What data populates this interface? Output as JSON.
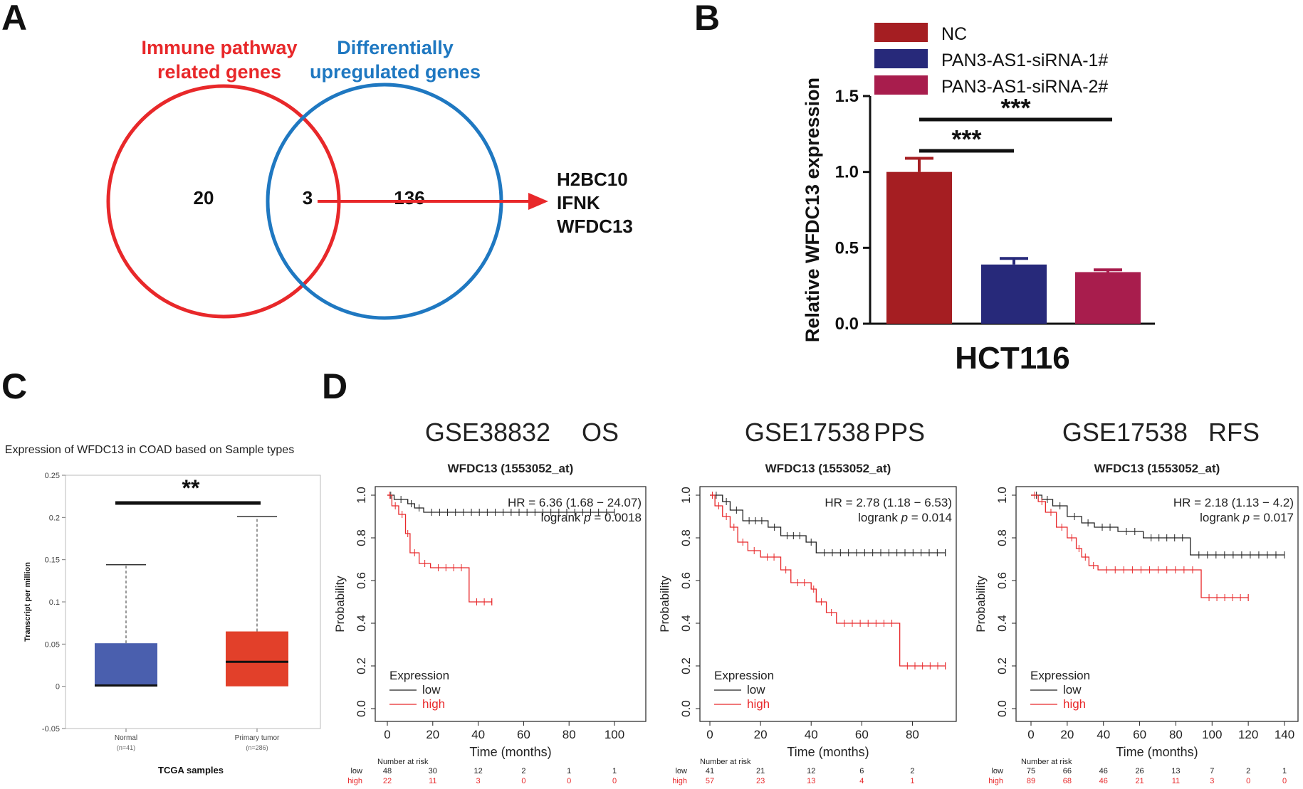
{
  "panels": {
    "a": "A",
    "b": "B",
    "c": "C",
    "d": "D"
  },
  "venn": {
    "left_title_1": "Immune pathway",
    "left_title_2": "related genes",
    "right_title_1": "Differentially",
    "right_title_2": "upregulated genes",
    "left_only": "20",
    "overlap": "3",
    "right_only": "136",
    "genes": [
      "H2BC10",
      "IFNK",
      "WFDC13"
    ],
    "colors": {
      "left": "#e8282a",
      "right": "#1f78c1",
      "arrow": "#e8282a"
    }
  },
  "chart_data": [
    {
      "type": "bar",
      "panel": "B",
      "categories": [
        "NC",
        "PAN3-AS1-siRNA-1#",
        "PAN3-AS1-siRNA-2#"
      ],
      "values": [
        1.0,
        0.39,
        0.34
      ],
      "errors": [
        0.09,
        0.04,
        0.015
      ],
      "colors": [
        "#a51e22",
        "#27297a",
        "#a81d4d"
      ],
      "ylabel": "Relative WFDC13 expression",
      "xlabel": "HCT116",
      "ylim": [
        0,
        1.5
      ],
      "yticks": [
        "0.0",
        "0.5",
        "1.0",
        "1.5"
      ],
      "legend": [
        "NC",
        "PAN3-AS1-siRNA-1#",
        "PAN3-AS1-siRNA-2#"
      ],
      "legend_position": "top",
      "significance": [
        {
          "from": "NC",
          "to": "PAN3-AS1-siRNA-1#",
          "label": "***"
        },
        {
          "from": "NC",
          "to": "PAN3-AS1-siRNA-2#",
          "label": "***"
        }
      ]
    },
    {
      "type": "box",
      "panel": "C",
      "title": "Expression of WFDC13 in COAD based on Sample types",
      "ylabel": "Transcript per million",
      "xlabel": "TCGA samples",
      "ylim": [
        -0.05,
        0.25
      ],
      "yticks": [
        "-0.05",
        "0",
        "0.05",
        "0.1",
        "0.15",
        "0.2",
        "0.25"
      ],
      "groups": [
        {
          "name": "Normal",
          "n_label": "(n=41)",
          "min": 0,
          "q1": 0,
          "median": 0.001,
          "q3": 0.051,
          "max": 0.144,
          "color": "#4a5fae"
        },
        {
          "name": "Primary tumor",
          "n_label": "(n=286)",
          "min": 0,
          "q1": 0,
          "median": 0.029,
          "q3": 0.065,
          "max": 0.201,
          "color": "#e2402a"
        }
      ],
      "significance": "**"
    },
    {
      "type": "line",
      "panel": "D",
      "heading": [
        "GSE38832",
        "OS"
      ],
      "title": "WFDC13 (1553052_at)",
      "xlabel": "Time (months)",
      "ylabel": "Probability",
      "xlim": [
        0,
        100
      ],
      "xticks": [
        0,
        20,
        40,
        60,
        80,
        100
      ],
      "ylim": [
        0,
        1
      ],
      "yticks": [
        "0.0",
        "0.2",
        "0.4",
        "0.6",
        "0.8",
        "1.0"
      ],
      "hr_text": "HR = 6.36 (1.68 − 24.07)",
      "logrank_prefix": "logrank ",
      "logrank_p": "p",
      "logrank_value": " = 0.0018",
      "legend_title": "Expression",
      "legend_position": "bottom-left",
      "series": [
        {
          "name": "low",
          "color": "#222222",
          "steps": [
            [
              0,
              1.0
            ],
            [
              3,
              0.98
            ],
            [
              9,
              0.96
            ],
            [
              12,
              0.94
            ],
            [
              16,
              0.92
            ],
            [
              100,
              0.92
            ]
          ],
          "end": 100
        },
        {
          "name": "high",
          "color": "#e8282a",
          "steps": [
            [
              0,
              1.0
            ],
            [
              2,
              0.95
            ],
            [
              5,
              0.91
            ],
            [
              8,
              0.82
            ],
            [
              10,
              0.73
            ],
            [
              14,
              0.68
            ],
            [
              19,
              0.66
            ],
            [
              36,
              0.5
            ],
            [
              46,
              0.5
            ]
          ],
          "end": 46
        }
      ],
      "risk_label": "Number at risk",
      "risk_rows": [
        {
          "name": "low",
          "values": [
            "48",
            "30",
            "12",
            "2",
            "1",
            "1"
          ]
        },
        {
          "name": "high",
          "values": [
            "22",
            "11",
            "3",
            "0",
            "0",
            "0"
          ]
        }
      ]
    },
    {
      "type": "line",
      "panel": "D",
      "heading": [
        "GSE17538",
        "PPS"
      ],
      "title": "WFDC13 (1553052_at)",
      "xlabel": "Time (months)",
      "ylabel": "Probability",
      "xlim": [
        0,
        90
      ],
      "xticks": [
        0,
        20,
        40,
        60,
        80
      ],
      "ylim": [
        0,
        1
      ],
      "yticks": [
        "0.0",
        "0.2",
        "0.4",
        "0.6",
        "0.8",
        "1.0"
      ],
      "hr_text": "HR = 2.78 (1.18 − 6.53)",
      "logrank_prefix": "logrank ",
      "logrank_p": "p",
      "logrank_value": " = 0.014",
      "legend_title": "Expression",
      "legend_position": "bottom-left",
      "series": [
        {
          "name": "low",
          "color": "#222222",
          "steps": [
            [
              0,
              1.0
            ],
            [
              5,
              0.97
            ],
            [
              8,
              0.93
            ],
            [
              13,
              0.88
            ],
            [
              23,
              0.85
            ],
            [
              28,
              0.81
            ],
            [
              38,
              0.78
            ],
            [
              42,
              0.73
            ],
            [
              93,
              0.73
            ]
          ],
          "end": 93
        },
        {
          "name": "high",
          "color": "#e8282a",
          "steps": [
            [
              0,
              1.0
            ],
            [
              2,
              0.95
            ],
            [
              5,
              0.9
            ],
            [
              8,
              0.85
            ],
            [
              11,
              0.78
            ],
            [
              15,
              0.74
            ],
            [
              20,
              0.71
            ],
            [
              28,
              0.65
            ],
            [
              32,
              0.59
            ],
            [
              40,
              0.56
            ],
            [
              42,
              0.5
            ],
            [
              46,
              0.45
            ],
            [
              50,
              0.4
            ],
            [
              75,
              0.2
            ],
            [
              93,
              0.2
            ]
          ],
          "end": 93
        }
      ],
      "risk_label": "Number at risk",
      "risk_rows": [
        {
          "name": "low",
          "values": [
            "41",
            "21",
            "12",
            "6",
            "2"
          ]
        },
        {
          "name": "high",
          "values": [
            "57",
            "23",
            "13",
            "4",
            "1"
          ]
        }
      ]
    },
    {
      "type": "line",
      "panel": "D",
      "heading": [
        "GSE17538",
        "RFS"
      ],
      "title": "WFDC13 (1553052_at)",
      "xlabel": "Time (months)",
      "ylabel": "Probability",
      "xlim": [
        0,
        140
      ],
      "xticks": [
        0,
        20,
        40,
        60,
        80,
        100,
        120,
        140
      ],
      "ylim": [
        0,
        1
      ],
      "yticks": [
        "0.0",
        "0.2",
        "0.4",
        "0.6",
        "0.8",
        "1.0"
      ],
      "hr_text": "HR = 2.18 (1.13 − 4.2)",
      "logrank_prefix": "logrank ",
      "logrank_p": "p",
      "logrank_value": " = 0.017",
      "legend_title": "Expression",
      "legend_position": "bottom-left",
      "series": [
        {
          "name": "low",
          "color": "#222222",
          "steps": [
            [
              0,
              1.0
            ],
            [
              6,
              0.98
            ],
            [
              12,
              0.95
            ],
            [
              20,
              0.9
            ],
            [
              28,
              0.87
            ],
            [
              35,
              0.85
            ],
            [
              48,
              0.83
            ],
            [
              62,
              0.8
            ],
            [
              88,
              0.72
            ],
            [
              140,
              0.72
            ]
          ],
          "end": 140
        },
        {
          "name": "high",
          "color": "#e8282a",
          "steps": [
            [
              0,
              1.0
            ],
            [
              4,
              0.97
            ],
            [
              8,
              0.92
            ],
            [
              14,
              0.85
            ],
            [
              20,
              0.8
            ],
            [
              25,
              0.75
            ],
            [
              28,
              0.71
            ],
            [
              32,
              0.67
            ],
            [
              37,
              0.65
            ],
            [
              94,
              0.52
            ],
            [
              120,
              0.52
            ]
          ],
          "end": 120
        }
      ],
      "risk_label": "Number at risk",
      "risk_rows": [
        {
          "name": "low",
          "values": [
            "75",
            "66",
            "46",
            "26",
            "13",
            "7",
            "2",
            "1"
          ]
        },
        {
          "name": "high",
          "values": [
            "89",
            "68",
            "46",
            "21",
            "11",
            "3",
            "0",
            "0"
          ]
        }
      ]
    }
  ]
}
